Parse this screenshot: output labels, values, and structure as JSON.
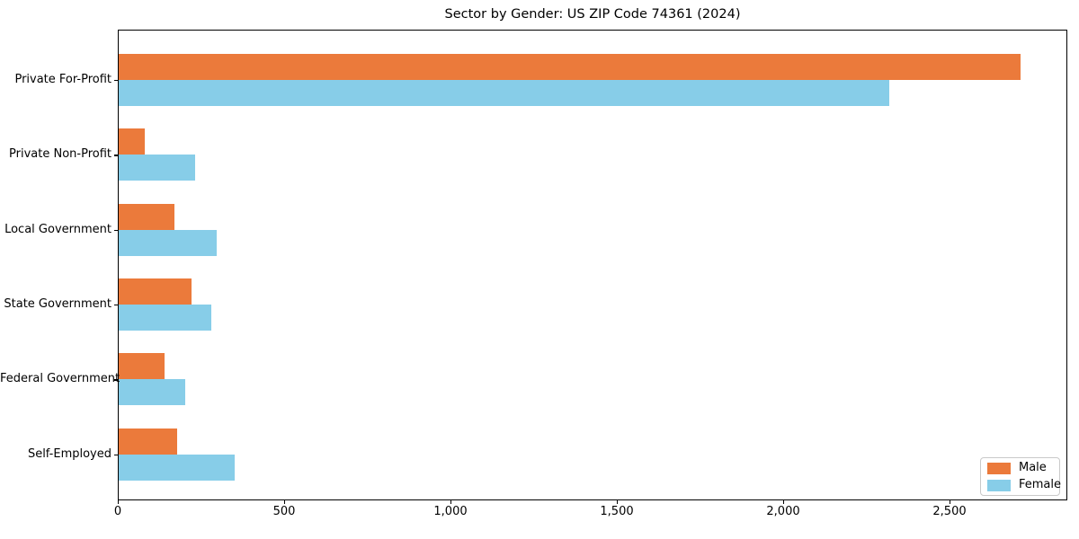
{
  "chart_data": {
    "type": "bar",
    "orientation": "horizontal",
    "title": "Sector by Gender: US ZIP Code 74361 (2024)",
    "categories": [
      "Private For-Profit",
      "Private Non-Profit",
      "Local Government",
      "State Government",
      "Federal Government",
      "Self-Employed"
    ],
    "series": [
      {
        "name": "Male",
        "color": "#eb7a3b",
        "values": [
          2710,
          78,
          167,
          219,
          138,
          176
        ]
      },
      {
        "name": "Female",
        "color": "#87cde8",
        "values": [
          2315,
          231,
          294,
          278,
          200,
          348
        ]
      }
    ],
    "xlabel": "",
    "ylabel": "",
    "xlim": [
      0,
      2850
    ],
    "x_ticks": [
      0,
      500,
      1000,
      1500,
      2000,
      2500
    ],
    "x_tick_labels": [
      "0",
      "500",
      "1,000",
      "1,500",
      "2,000",
      "2,500"
    ],
    "grid": false,
    "legend": {
      "position": "lower right"
    }
  }
}
